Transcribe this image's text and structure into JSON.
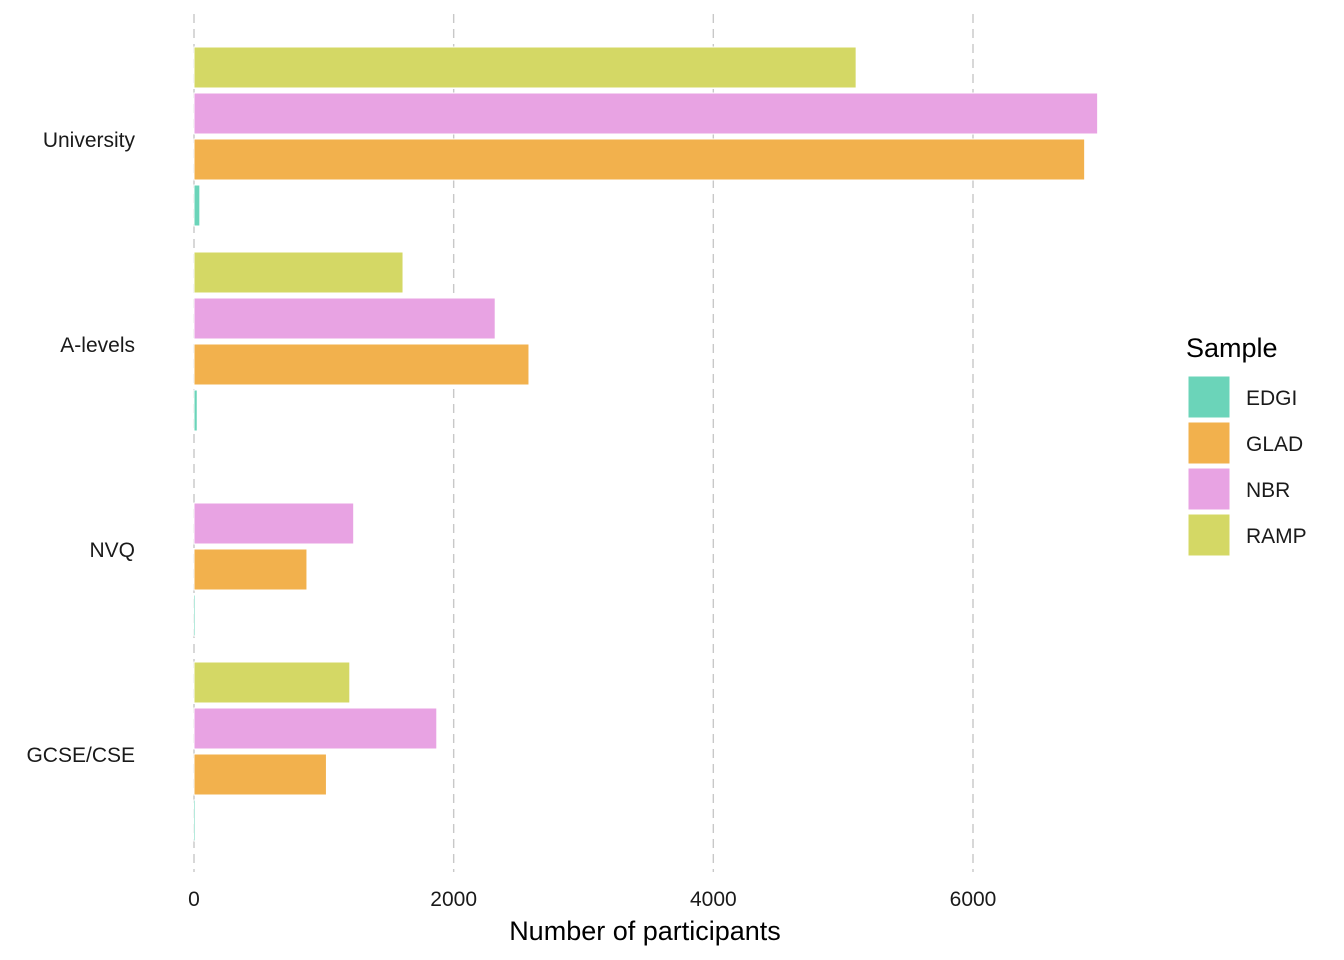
{
  "chart_data": {
    "type": "bar",
    "orientation": "horizontal",
    "title": "",
    "xlabel": "Number of participants",
    "ylabel": "",
    "xlim": [
      0,
      7300
    ],
    "x_ticks": [
      0,
      2000,
      4000,
      6000
    ],
    "x_tick_labels": [
      "0",
      "2000",
      "4000",
      "6000"
    ],
    "grid": "vertical major gridlines, dashed",
    "categories": [
      "University",
      "A-levels",
      "NVQ",
      "GCSE/CSE"
    ],
    "legend": {
      "title": "Sample",
      "position": "right",
      "entries": [
        "EDGI",
        "GLAD",
        "NBR",
        "RAMP"
      ]
    },
    "series": [
      {
        "name": "EDGI",
        "color": "#6bd4b9",
        "values": [
          45,
          25,
          5,
          5
        ]
      },
      {
        "name": "GLAD",
        "color": "#f2b14d",
        "values": [
          6860,
          2580,
          870,
          1020
        ]
      },
      {
        "name": "NBR",
        "color": "#e8a3e3",
        "values": [
          6960,
          2320,
          1230,
          1870
        ]
      },
      {
        "name": "RAMP",
        "color": "#d4d865",
        "values": [
          5100,
          1610,
          null,
          1200
        ]
      }
    ]
  }
}
